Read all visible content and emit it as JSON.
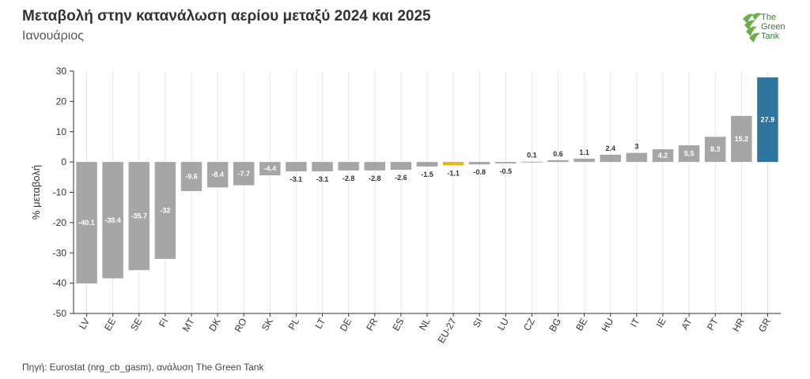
{
  "title": "Μεταβολή στην κατανάλωση αερίου μεταξύ 2024 και 2025",
  "subtitle": "Ιανουάριος",
  "source": "Πηγή: Eurostat (nrg_cb_gasm), ανάλυση The Green Tank",
  "logo": {
    "line1": "The",
    "line2": "Green",
    "line3": "Tank"
  },
  "colors": {
    "default_bar": "#a6a6a6",
    "eu_bar": "#e8b51a",
    "gr_bar": "#2e75a0",
    "logo_green": "#6ab04c",
    "logo_dark": "#2e7d32"
  },
  "chart_data": {
    "type": "bar",
    "title": "Μεταβολή στην κατανάλωση αερίου μεταξύ 2024 και 2025",
    "subtitle": "Ιανουάριος",
    "xlabel": "",
    "ylabel": "% μεταβολή",
    "ylim": [
      -50,
      30
    ],
    "yticks": [
      30,
      20,
      10,
      0,
      -10,
      -20,
      -30,
      -40,
      -50
    ],
    "grid": "vertical",
    "categories": [
      "LV",
      "EE",
      "SE",
      "FI",
      "MT",
      "DK",
      "RO",
      "SK",
      "PL",
      "LT",
      "DE",
      "FR",
      "ES",
      "NL",
      "EU-27",
      "SI",
      "LU",
      "CZ",
      "BG",
      "BE",
      "HU",
      "IT",
      "IE",
      "AT",
      "PT",
      "HR",
      "GR"
    ],
    "values": [
      -40.1,
      -38.4,
      -35.7,
      -32,
      -9.6,
      -8.4,
      -7.7,
      -4.4,
      -3.1,
      -3.1,
      -2.8,
      -2.8,
      -2.6,
      -1.5,
      -1.1,
      -0.8,
      -0.5,
      0.1,
      0.6,
      1.1,
      2.4,
      3,
      4.2,
      5.5,
      8.3,
      15.2,
      27.9
    ],
    "labels": [
      "-40.1",
      "-38.4",
      "-35.7",
      "-32",
      "-9.6",
      "-8.4",
      "-7.7",
      "-4.4",
      "-3.1",
      "-3.1",
      "-2.8",
      "-2.8",
      "-2.6",
      "-1.5",
      "-1.1",
      "-0.8",
      "-0.5",
      "0.1",
      "0.6",
      "1.1",
      "2.4",
      "3",
      "4.2",
      "5.5",
      "8.3",
      "15.2",
      "27.9"
    ],
    "highlight": {
      "EU-27": "eu_bar",
      "GR": "gr_bar"
    }
  }
}
